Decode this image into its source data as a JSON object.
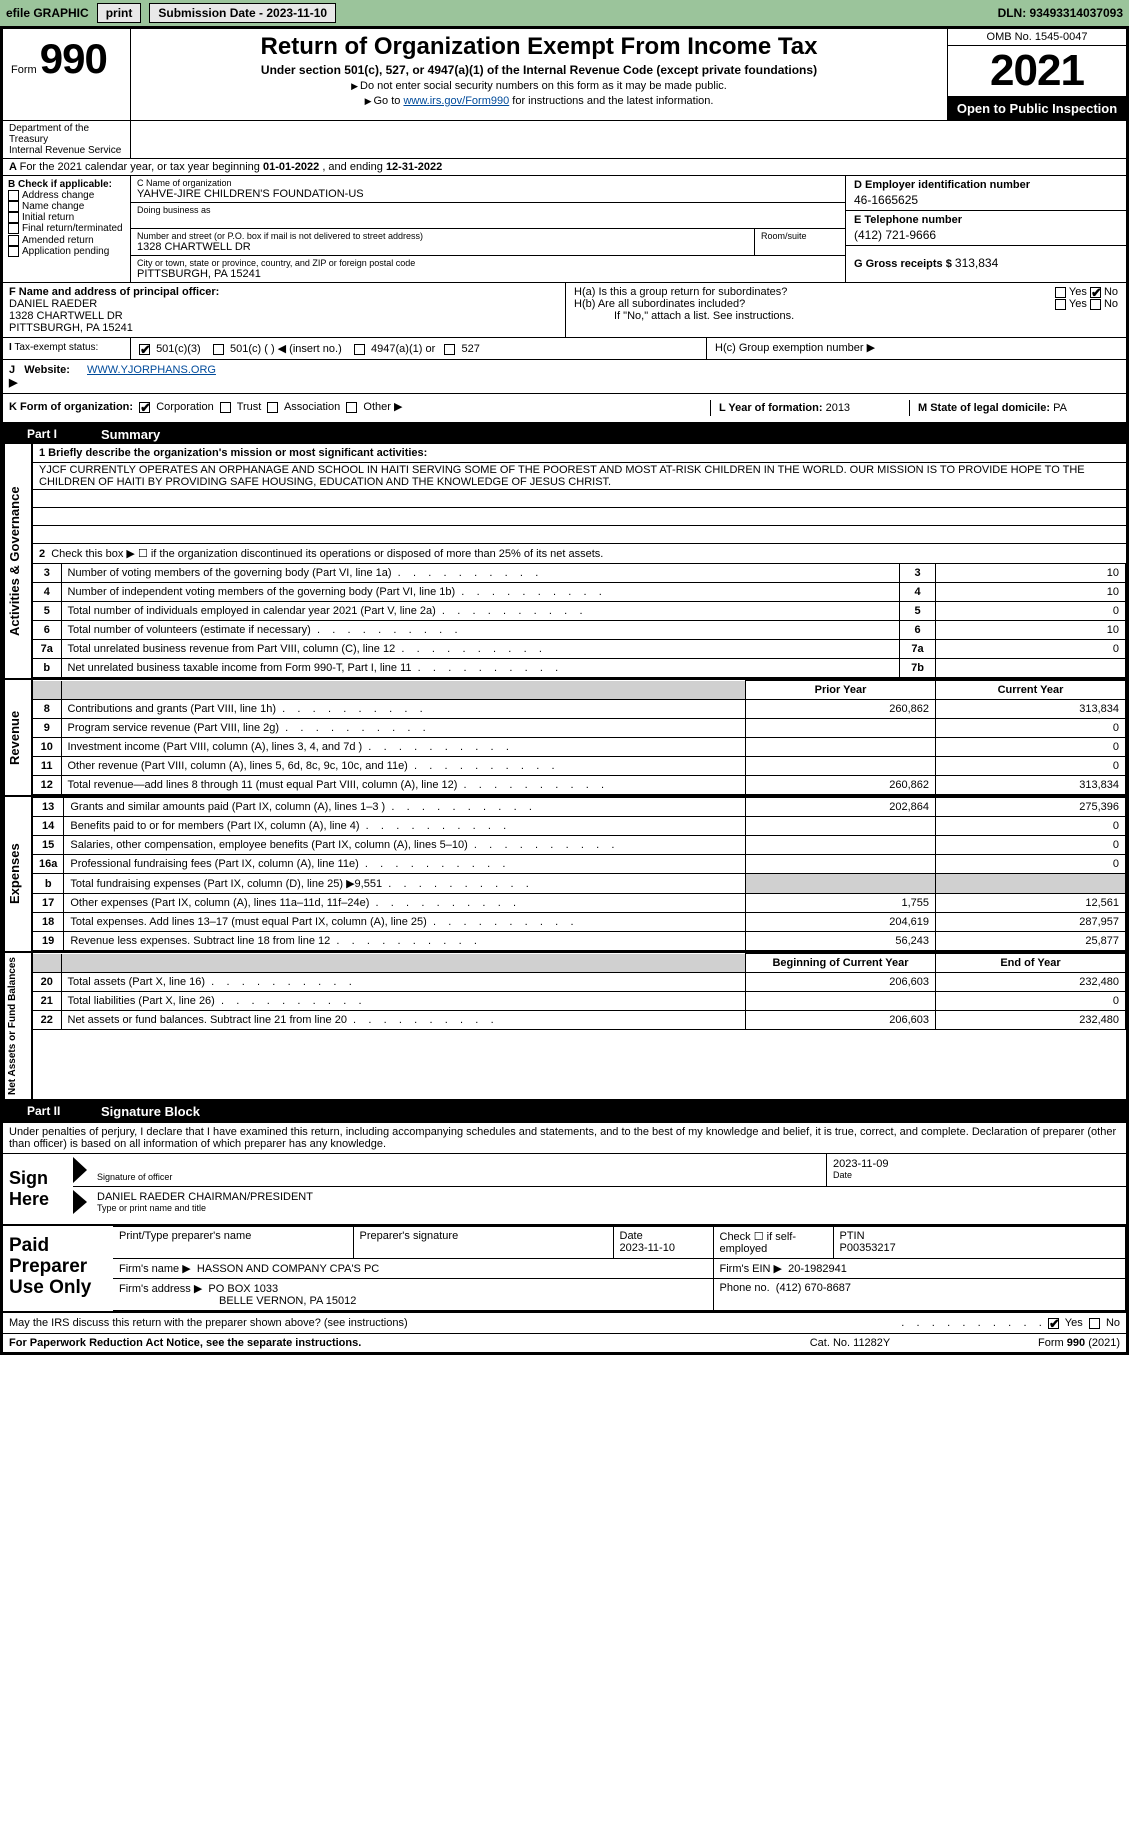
{
  "topbar": {
    "efile": "efile GRAPHIC",
    "print": "print",
    "sub_label": "Submission Date - 2023-11-10",
    "dln_label": "DLN: 93493314037093"
  },
  "header": {
    "form_small": "Form",
    "form_num": "990",
    "title": "Return of Organization Exempt From Income Tax",
    "sub1": "Under section 501(c), 527, or 4947(a)(1) of the Internal Revenue Code (except private foundations)",
    "sub2": "Do not enter social security numbers on this form as it may be made public.",
    "sub3_a": "Go to ",
    "sub3_link": "www.irs.gov/Form990",
    "sub3_b": " for instructions and the latest information.",
    "omb": "OMB No. 1545-0047",
    "year": "2021",
    "opi": "Open to Public Inspection",
    "dept": "Department of the Treasury",
    "irs": "Internal Revenue Service"
  },
  "lineA": {
    "text_a": "For the 2021 calendar year, or tax year beginning ",
    "date1": "01-01-2022",
    "text_b": " , and ending ",
    "date2": "12-31-2022"
  },
  "boxB": {
    "hdr": "B Check if applicable:",
    "items": [
      "Address change",
      "Name change",
      "Initial return",
      "Final return/terminated",
      "Amended return",
      "Application pending"
    ]
  },
  "boxC": {
    "name_lbl": "C Name of organization",
    "name": "YAHVE-JIRE CHILDREN'S FOUNDATION-US",
    "dba_lbl": "Doing business as",
    "addr_lbl": "Number and street (or P.O. box if mail is not delivered to street address)",
    "room_lbl": "Room/suite",
    "addr": "1328 CHARTWELL DR",
    "city_lbl": "City or town, state or province, country, and ZIP or foreign postal code",
    "city": "PITTSBURGH, PA  15241"
  },
  "boxD": {
    "lbl": "D Employer identification number",
    "val": "46-1665625"
  },
  "boxE": {
    "lbl": "E Telephone number",
    "val": "(412) 721-9666"
  },
  "boxG": {
    "lbl": "G Gross receipts $",
    "val": "313,834"
  },
  "boxF": {
    "lbl": "F Name and address of principal officer:",
    "name": "DANIEL RAEDER",
    "addr1": "1328 CHARTWELL DR",
    "addr2": "PITTSBURGH, PA  15241"
  },
  "boxH": {
    "ha": "H(a)  Is this a group return for subordinates?",
    "hb": "H(b)  Are all subordinates included?",
    "hb_note": "If \"No,\" attach a list. See instructions.",
    "hc": "H(c)  Group exemption number ▶",
    "yes": "Yes",
    "no": "No"
  },
  "rowI": {
    "lbl": "Tax-exempt status:",
    "opt1": "501(c)(3)",
    "opt2": "501(c) (   ) ◀ (insert no.)",
    "opt3": "4947(a)(1) or",
    "opt4": "527"
  },
  "rowJ": {
    "lbl": "Website: ▶",
    "val": "WWW.YJORPHANS.ORG"
  },
  "rowK": {
    "lbl": "K Form of organization:",
    "opts": [
      "Corporation",
      "Trust",
      "Association",
      "Other ▶"
    ],
    "L_lbl": "L Year of formation:",
    "L_val": "2013",
    "M_lbl": "M State of legal domicile:",
    "M_val": "PA"
  },
  "part1": {
    "label": "Part I",
    "title": "Summary",
    "line1_lbl": "1  Briefly describe the organization's mission or most significant activities:",
    "mission": "YJCF CURRENTLY OPERATES AN ORPHANAGE AND SCHOOL IN HAITI SERVING SOME OF THE POOREST AND MOST AT-RISK CHILDREN IN THE WORLD. OUR MISSION IS TO PROVIDE HOPE TO THE CHILDREN OF HAITI BY PROVIDING SAFE HOUSING, EDUCATION AND THE KNOWLEDGE OF JESUS CHRIST.",
    "vert_ag": "Activities & Governance",
    "vert_rev": "Revenue",
    "vert_exp": "Expenses",
    "vert_na": "Net Assets or Fund Balances",
    "line2": "Check this box ▶ ☐ if the organization discontinued its operations or disposed of more than 25% of its net assets.",
    "rows_ag": [
      {
        "n": "3",
        "d": "Number of voting members of the governing body (Part VI, line 1a)",
        "b": "3",
        "v": "10"
      },
      {
        "n": "4",
        "d": "Number of independent voting members of the governing body (Part VI, line 1b)",
        "b": "4",
        "v": "10"
      },
      {
        "n": "5",
        "d": "Total number of individuals employed in calendar year 2021 (Part V, line 2a)",
        "b": "5",
        "v": "0"
      },
      {
        "n": "6",
        "d": "Total number of volunteers (estimate if necessary)",
        "b": "6",
        "v": "10"
      },
      {
        "n": "7a",
        "d": "Total unrelated business revenue from Part VIII, column (C), line 12",
        "b": "7a",
        "v": "0"
      },
      {
        "n": "b",
        "d": "Net unrelated business taxable income from Form 990-T, Part I, line 11",
        "b": "7b",
        "v": ""
      }
    ],
    "hdr_prior": "Prior Year",
    "hdr_curr": "Current Year",
    "rows_rev": [
      {
        "n": "8",
        "d": "Contributions and grants (Part VIII, line 1h)",
        "p": "260,862",
        "c": "313,834"
      },
      {
        "n": "9",
        "d": "Program service revenue (Part VIII, line 2g)",
        "p": "",
        "c": "0"
      },
      {
        "n": "10",
        "d": "Investment income (Part VIII, column (A), lines 3, 4, and 7d )",
        "p": "",
        "c": "0"
      },
      {
        "n": "11",
        "d": "Other revenue (Part VIII, column (A), lines 5, 6d, 8c, 9c, 10c, and 11e)",
        "p": "",
        "c": "0"
      },
      {
        "n": "12",
        "d": "Total revenue—add lines 8 through 11 (must equal Part VIII, column (A), line 12)",
        "p": "260,862",
        "c": "313,834"
      }
    ],
    "rows_exp": [
      {
        "n": "13",
        "d": "Grants and similar amounts paid (Part IX, column (A), lines 1–3 )",
        "p": "202,864",
        "c": "275,396"
      },
      {
        "n": "14",
        "d": "Benefits paid to or for members (Part IX, column (A), line 4)",
        "p": "",
        "c": "0"
      },
      {
        "n": "15",
        "d": "Salaries, other compensation, employee benefits (Part IX, column (A), lines 5–10)",
        "p": "",
        "c": "0"
      },
      {
        "n": "16a",
        "d": "Professional fundraising fees (Part IX, column (A), line 11e)",
        "p": "",
        "c": "0"
      },
      {
        "n": "b",
        "d": "Total fundraising expenses (Part IX, column (D), line 25) ▶9,551",
        "p": "SHADE",
        "c": "SHADE"
      },
      {
        "n": "17",
        "d": "Other expenses (Part IX, column (A), lines 11a–11d, 11f–24e)",
        "p": "1,755",
        "c": "12,561"
      },
      {
        "n": "18",
        "d": "Total expenses. Add lines 13–17 (must equal Part IX, column (A), line 25)",
        "p": "204,619",
        "c": "287,957"
      },
      {
        "n": "19",
        "d": "Revenue less expenses. Subtract line 18 from line 12",
        "p": "56,243",
        "c": "25,877"
      }
    ],
    "hdr_beg": "Beginning of Current Year",
    "hdr_end": "End of Year",
    "rows_na": [
      {
        "n": "20",
        "d": "Total assets (Part X, line 16)",
        "p": "206,603",
        "c": "232,480"
      },
      {
        "n": "21",
        "d": "Total liabilities (Part X, line 26)",
        "p": "",
        "c": "0"
      },
      {
        "n": "22",
        "d": "Net assets or fund balances. Subtract line 21 from line 20",
        "p": "206,603",
        "c": "232,480"
      }
    ]
  },
  "part2": {
    "label": "Part II",
    "title": "Signature Block",
    "decl": "Under penalties of perjury, I declare that I have examined this return, including accompanying schedules and statements, and to the best of my knowledge and belief, it is true, correct, and complete. Declaration of preparer (other than officer) is based on all information of which preparer has any knowledge.",
    "sign_here": "Sign Here",
    "sig_officer_lbl": "Signature of officer",
    "date_lbl": "Date",
    "sig_date": "2023-11-09",
    "name_title": "DANIEL RAEDER  CHAIRMAN/PRESIDENT",
    "type_name_lbl": "Type or print name and title",
    "paid_prep": "Paid Preparer Use Only",
    "prep_name_lbl": "Print/Type preparer's name",
    "prep_sig_lbl": "Preparer's signature",
    "prep_date_lbl": "Date",
    "prep_date": "2023-11-10",
    "check_self": "Check ☐ if self-employed",
    "ptin_lbl": "PTIN",
    "ptin": "P00353217",
    "firm_name_lbl": "Firm's name    ▶",
    "firm_name": "HASSON AND COMPANY CPA'S PC",
    "firm_ein_lbl": "Firm's EIN ▶",
    "firm_ein": "20-1982941",
    "firm_addr_lbl": "Firm's address ▶",
    "firm_addr1": "PO BOX 1033",
    "firm_addr2": "BELLE VERNON, PA  15012",
    "phone_lbl": "Phone no.",
    "phone": "(412) 670-8687",
    "may_irs": "May the IRS discuss this return with the preparer shown above? (see instructions)",
    "yes": "Yes",
    "no": "No"
  },
  "footer": {
    "l": "For Paperwork Reduction Act Notice, see the separate instructions.",
    "c": "Cat. No. 11282Y",
    "r": "Form 990 (2021)"
  }
}
